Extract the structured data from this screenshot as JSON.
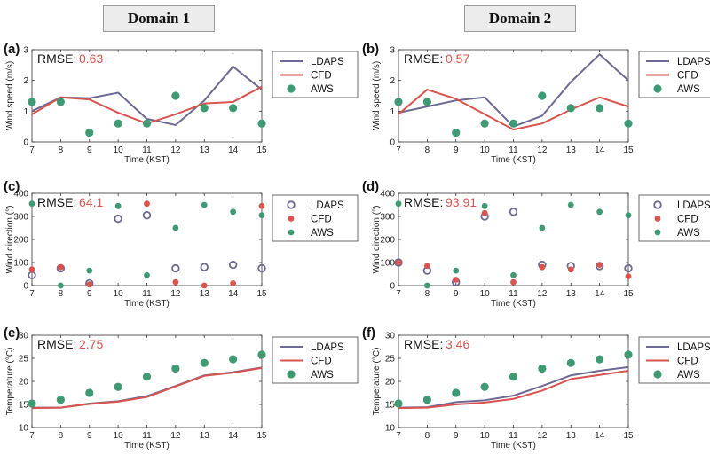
{
  "headers": {
    "domain1": "Domain 1",
    "domain2": "Domain 2"
  },
  "colors": {
    "ldaps": "#6c6a92",
    "cfd": "#d9534f",
    "aws": "#3f9a73",
    "rmse_value": "#d9534f"
  },
  "chart_data": [
    {
      "id": "a",
      "panel_label": "(a)",
      "type": "line",
      "rmse_label": "RMSE:",
      "rmse_value": "0.63",
      "xlabel": "Time (KST)",
      "ylabel": "Wind speed (m/s)",
      "xlim": [
        7,
        15
      ],
      "ylim": [
        0,
        3
      ],
      "yticks": [
        0,
        1,
        2,
        3
      ],
      "x": [
        7,
        8,
        9,
        10,
        11,
        12,
        13,
        14,
        15
      ],
      "series": [
        {
          "name": "LDAPS",
          "style": "line",
          "values": [
            1.0,
            1.45,
            1.42,
            1.6,
            0.75,
            0.55,
            1.35,
            2.45,
            1.7
          ]
        },
        {
          "name": "CFD",
          "style": "line",
          "values": [
            0.9,
            1.45,
            1.38,
            0.95,
            0.6,
            0.9,
            1.25,
            1.3,
            1.8
          ]
        },
        {
          "name": "AWS",
          "style": "dot",
          "values": [
            1.3,
            1.3,
            0.3,
            0.6,
            0.6,
            1.5,
            1.1,
            1.1,
            0.6
          ]
        }
      ]
    },
    {
      "id": "b",
      "panel_label": "(b)",
      "type": "line",
      "rmse_label": "RMSE:",
      "rmse_value": "0.57",
      "xlabel": "Time (KST)",
      "ylabel": "Wind speed (m/s)",
      "xlim": [
        7,
        15
      ],
      "ylim": [
        0,
        3
      ],
      "yticks": [
        0,
        1,
        2,
        3
      ],
      "x": [
        7,
        8,
        9,
        10,
        11,
        12,
        13,
        14,
        15
      ],
      "series": [
        {
          "name": "LDAPS",
          "style": "line",
          "values": [
            0.95,
            1.15,
            1.35,
            1.45,
            0.5,
            0.85,
            1.95,
            2.85,
            2.0
          ]
        },
        {
          "name": "CFD",
          "style": "line",
          "values": [
            0.9,
            1.7,
            1.4,
            0.9,
            0.4,
            0.6,
            1.05,
            1.45,
            1.15
          ]
        },
        {
          "name": "AWS",
          "style": "dot",
          "values": [
            1.3,
            1.3,
            0.3,
            0.6,
            0.6,
            1.5,
            1.1,
            1.1,
            0.6
          ]
        }
      ]
    },
    {
      "id": "c",
      "panel_label": "(c)",
      "type": "scatter",
      "rmse_label": "RMSE:",
      "rmse_value": "64.1",
      "xlabel": "Time (KST)",
      "ylabel": "Wind direction (°)",
      "xlim": [
        7,
        15
      ],
      "ylim": [
        0,
        400
      ],
      "yticks": [
        0,
        100,
        200,
        300,
        400
      ],
      "x": [
        7,
        8,
        9,
        10,
        11,
        12,
        13,
        14,
        15
      ],
      "series": [
        {
          "name": "LDAPS",
          "style": "ring",
          "values": [
            45,
            75,
            10,
            290,
            305,
            75,
            80,
            90,
            75
          ]
        },
        {
          "name": "CFD",
          "style": "dot-small",
          "values": [
            70,
            80,
            5,
            345,
            355,
            15,
            0,
            10,
            345
          ]
        },
        {
          "name": "AWS",
          "style": "dot-small",
          "values": [
            355,
            0,
            65,
            345,
            45,
            250,
            350,
            320,
            305
          ]
        }
      ]
    },
    {
      "id": "d",
      "panel_label": "(d)",
      "type": "scatter",
      "rmse_label": "RMSE:",
      "rmse_value": "93.91",
      "xlabel": "Time (KST)",
      "ylabel": "Wind direction (°)",
      "xlim": [
        7,
        15
      ],
      "ylim": [
        0,
        400
      ],
      "yticks": [
        0,
        100,
        200,
        300,
        400
      ],
      "x": [
        7,
        8,
        9,
        10,
        11,
        12,
        13,
        14,
        15
      ],
      "series": [
        {
          "name": "LDAPS",
          "style": "ring",
          "values": [
            100,
            65,
            15,
            300,
            320,
            90,
            85,
            85,
            75
          ]
        },
        {
          "name": "CFD",
          "style": "dot-small",
          "values": [
            100,
            85,
            25,
            315,
            15,
            80,
            70,
            90,
            40
          ]
        },
        {
          "name": "AWS",
          "style": "dot-small",
          "values": [
            355,
            0,
            65,
            345,
            45,
            250,
            350,
            320,
            305
          ]
        }
      ]
    },
    {
      "id": "e",
      "panel_label": "(e)",
      "type": "line",
      "rmse_label": "RMSE:",
      "rmse_value": "2.75",
      "xlabel": "Time (KST)",
      "ylabel": "Temperature (°C)",
      "xlim": [
        7,
        15
      ],
      "ylim": [
        10,
        30
      ],
      "yticks": [
        10,
        15,
        20,
        25,
        30
      ],
      "x": [
        7,
        8,
        9,
        10,
        11,
        12,
        13,
        14,
        15
      ],
      "series": [
        {
          "name": "LDAPS",
          "style": "line",
          "values": [
            14.3,
            14.3,
            15.2,
            15.7,
            16.8,
            19.0,
            21.3,
            22.0,
            23.0
          ]
        },
        {
          "name": "CFD",
          "style": "line",
          "values": [
            14.2,
            14.3,
            15.1,
            15.6,
            16.6,
            18.9,
            21.2,
            21.9,
            22.9
          ]
        },
        {
          "name": "AWS",
          "style": "dot",
          "values": [
            15.2,
            16.0,
            17.5,
            18.8,
            21.0,
            22.8,
            24.0,
            24.8,
            25.8
          ]
        }
      ]
    },
    {
      "id": "f",
      "panel_label": "(f)",
      "type": "line",
      "rmse_label": "RMSE:",
      "rmse_value": "3.46",
      "xlabel": "Time (KST)",
      "ylabel": "Temperature (°C)",
      "xlim": [
        7,
        15
      ],
      "ylim": [
        10,
        30
      ],
      "yticks": [
        10,
        15,
        20,
        25,
        30
      ],
      "x": [
        7,
        8,
        9,
        10,
        11,
        12,
        13,
        14,
        15
      ],
      "series": [
        {
          "name": "LDAPS",
          "style": "line",
          "values": [
            14.3,
            14.4,
            15.5,
            15.9,
            16.9,
            19.0,
            21.3,
            22.3,
            23.1
          ]
        },
        {
          "name": "CFD",
          "style": "line",
          "values": [
            14.2,
            14.3,
            15.0,
            15.4,
            16.2,
            18.0,
            20.5,
            21.4,
            22.3
          ]
        },
        {
          "name": "AWS",
          "style": "dot",
          "values": [
            15.2,
            16.0,
            17.5,
            18.8,
            21.0,
            22.8,
            24.0,
            24.8,
            25.8
          ]
        }
      ]
    }
  ]
}
